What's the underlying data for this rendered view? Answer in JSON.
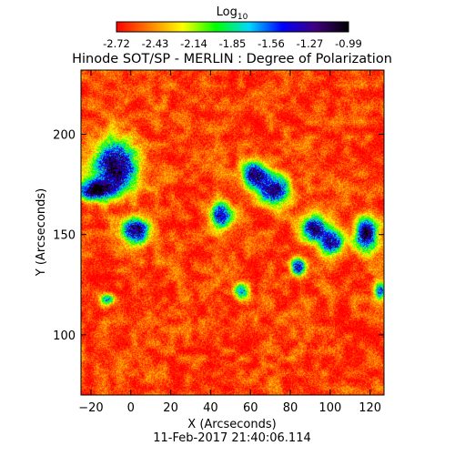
{
  "chart_data": {
    "type": "heatmap",
    "title": "Hinode SOT/SP - MERLIN : Degree of Polarization",
    "xlabel": "X (Arcseconds)",
    "ylabel": "Y (Arcseconds)",
    "timestamp": "11-Feb-2017 21:40:06.114",
    "xlim": [
      -25,
      127
    ],
    "ylim": [
      70,
      232
    ],
    "x_ticks": [
      -20,
      0,
      20,
      40,
      60,
      80,
      100,
      120
    ],
    "y_ticks": [
      100,
      150,
      200
    ],
    "colorbar": {
      "label_base": "Log",
      "label_sub": "10",
      "range": [
        -2.72,
        -0.99
      ],
      "ticks": [
        "-2.72",
        "-2.43",
        "-2.14",
        "-1.85",
        "-1.56",
        "-1.27",
        "-0.99"
      ],
      "colormap": "rainbow-reversed (red low, black high)",
      "stops": [
        "#ff0000",
        "#ff8000",
        "#ffff00",
        "#00ff00",
        "#00d8ff",
        "#0000ff",
        "#40007f",
        "#000000"
      ]
    },
    "background_level": -2.6,
    "high_polarization_regions": [
      {
        "x": -8,
        "y": 184,
        "rx": 12,
        "ry": 14,
        "peak": -1.0
      },
      {
        "x": -18,
        "y": 172,
        "rx": 9,
        "ry": 5,
        "peak": -1.05
      },
      {
        "x": 2,
        "y": 152,
        "rx": 8,
        "ry": 7,
        "peak": -1.1
      },
      {
        "x": 62,
        "y": 180,
        "rx": 7,
        "ry": 7,
        "peak": -1.15
      },
      {
        "x": 72,
        "y": 172,
        "rx": 8,
        "ry": 8,
        "peak": -1.1
      },
      {
        "x": 45,
        "y": 160,
        "rx": 6,
        "ry": 7,
        "peak": -1.2
      },
      {
        "x": 92,
        "y": 153,
        "rx": 7,
        "ry": 7,
        "peak": -1.05
      },
      {
        "x": 101,
        "y": 146,
        "rx": 6,
        "ry": 6,
        "peak": -1.15
      },
      {
        "x": 118,
        "y": 150,
        "rx": 6,
        "ry": 9,
        "peak": -1.05
      },
      {
        "x": 84,
        "y": 134,
        "rx": 4,
        "ry": 5,
        "peak": -1.2
      },
      {
        "x": 55,
        "y": 122,
        "rx": 4,
        "ry": 4,
        "peak": -1.5
      },
      {
        "x": -12,
        "y": 118,
        "rx": 4,
        "ry": 3,
        "peak": -1.5
      },
      {
        "x": 125,
        "y": 122,
        "rx": 3,
        "ry": 4,
        "peak": -1.4
      }
    ]
  }
}
